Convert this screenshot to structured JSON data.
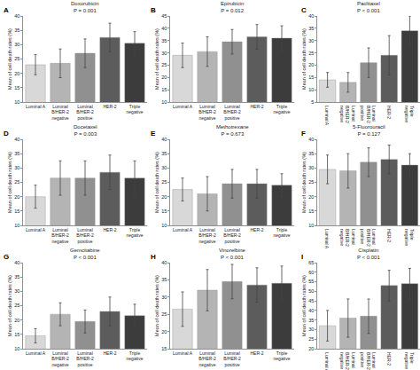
{
  "chart_data": [
    {
      "type": "bar",
      "title": "Doxorubicin",
      "subtitle": "P = 0.001",
      "annotations": [
        "A"
      ],
      "ylabel": "Mean of cell death rates (%)",
      "categories": [
        "Luminal A",
        "Luminal\nB/HER-2\nnegative",
        "Luminal\nB/HER-2\npositive",
        "HER-2",
        "Triple\nnegative"
      ],
      "values": [
        23,
        23.5,
        27,
        32.5,
        30.5
      ],
      "errors": [
        3.5,
        5,
        5,
        5,
        4
      ],
      "colors": [
        "#d8d8d8",
        "#b4b4b4",
        "#909090",
        "#5c5c5c",
        "#3c3c3c"
      ],
      "ylim": [
        10,
        40
      ],
      "yticks": [
        10,
        15,
        20,
        25,
        30,
        35,
        40
      ],
      "grid": false
    },
    {
      "type": "bar",
      "title": "Epirubicin",
      "subtitle": "P = 0.012",
      "annotations": [
        "B"
      ],
      "ylabel": "Mean of cell death rates (%)",
      "categories": [
        "Luminal A",
        "Luminal\nB/HER-2\nnegative",
        "Luminal\nB/HER-2\npositive",
        "HER-2",
        "Triple\nnegative"
      ],
      "values": [
        29,
        30.5,
        34.5,
        36.5,
        36
      ],
      "errors": [
        5,
        6,
        5,
        5,
        5
      ],
      "colors": [
        "#d8d8d8",
        "#b4b4b4",
        "#909090",
        "#5c5c5c",
        "#3c3c3c"
      ],
      "ylim": [
        10,
        45
      ],
      "yticks": [
        10,
        15,
        20,
        25,
        30,
        35,
        40,
        45
      ],
      "grid": false
    },
    {
      "type": "bar",
      "title": "Paclitaxel",
      "subtitle": "P < 0.001",
      "annotations": [
        "C"
      ],
      "ylabel": "Mean of cell death rates (%)",
      "categories": [
        "Luminal A",
        "Luminal\nB/HER-2\nnegative",
        "Luminal\nB/HER-2\npositive",
        "HER-2",
        "Triple\nnegative"
      ],
      "values": [
        14,
        13,
        21,
        24,
        34
      ],
      "errors": [
        3,
        4,
        6,
        8,
        6
      ],
      "colors": [
        "#d8d8d8",
        "#b4b4b4",
        "#909090",
        "#5c5c5c",
        "#3c3c3c"
      ],
      "ylim": [
        5,
        40
      ],
      "yticks": [
        5,
        10,
        15,
        20,
        25,
        30,
        35,
        40
      ],
      "grid": false
    },
    {
      "type": "bar",
      "title": "Docetaxel",
      "subtitle": "P = 0.003",
      "annotations": [
        "D"
      ],
      "ylabel": "Mean of cell death rates (%)",
      "categories": [
        "Luminal A",
        "Luminal\nB/HER-2\nnegative",
        "Luminal\nB/HER-2\npositive",
        "HER-2",
        "Triple\nnegative"
      ],
      "values": [
        20,
        26.5,
        26.5,
        28.5,
        26.5
      ],
      "errors": [
        4,
        6,
        6,
        6,
        6
      ],
      "colors": [
        "#d8d8d8",
        "#b4b4b4",
        "#909090",
        "#5c5c5c",
        "#3c3c3c"
      ],
      "ylim": [
        10,
        40
      ],
      "yticks": [
        10,
        15,
        20,
        25,
        30,
        35,
        40
      ],
      "grid": false
    },
    {
      "type": "bar",
      "title": "Methotrexane",
      "subtitle": "P = 0.673",
      "annotations": [
        "E"
      ],
      "ylabel": "Mean of cell death rates (%)",
      "categories": [
        "Luminal A",
        "Luminal\nB/HER-2\nnegative",
        "Luminal\nB/HER-2\npositive",
        "HER-2",
        "Triple\nnegative"
      ],
      "values": [
        22.5,
        21,
        24.5,
        24.5,
        24
      ],
      "errors": [
        4,
        6,
        5,
        5,
        4
      ],
      "colors": [
        "#d8d8d8",
        "#b4b4b4",
        "#909090",
        "#5c5c5c",
        "#3c3c3c"
      ],
      "ylim": [
        10,
        40
      ],
      "yticks": [
        10,
        15,
        20,
        25,
        30,
        35,
        40
      ],
      "grid": false
    },
    {
      "type": "bar",
      "title": "5-Fluorouracil",
      "subtitle": "P = 0.127",
      "annotations": [
        "F"
      ],
      "ylabel": "Mean of cell death rates (%)",
      "categories": [
        "Luminal A",
        "Luminal\nB/HER-2\nnegative",
        "Luminal\nB/HER-2\npositive",
        "HER-2",
        "Triple\nnegative"
      ],
      "values": [
        29.5,
        29,
        32,
        33,
        31
      ],
      "errors": [
        5,
        6,
        5,
        5,
        4
      ],
      "colors": [
        "#d8d8d8",
        "#b4b4b4",
        "#909090",
        "#5c5c5c",
        "#3c3c3c"
      ],
      "ylim": [
        10,
        40
      ],
      "yticks": [
        10,
        15,
        20,
        25,
        30,
        35,
        40
      ],
      "grid": false
    },
    {
      "type": "bar",
      "title": "Gemcitabine",
      "subtitle": "P < 0.001",
      "annotations": [
        "G"
      ],
      "ylabel": "Mean of cell death rates (%)",
      "categories": [
        "Luminal A",
        "Luminal\nB/HER-2\nnegative",
        "Luminal\nB/HER-2\npositive",
        "HER-2",
        "Triple\nnegative"
      ],
      "values": [
        14.5,
        22,
        19.5,
        23,
        21.5
      ],
      "errors": [
        2.5,
        4,
        4,
        5,
        4
      ],
      "colors": [
        "#d8d8d8",
        "#b4b4b4",
        "#909090",
        "#5c5c5c",
        "#3c3c3c"
      ],
      "ylim": [
        10,
        40
      ],
      "yticks": [
        10,
        15,
        20,
        25,
        30,
        35,
        40
      ],
      "grid": false
    },
    {
      "type": "bar",
      "title": "Vinorelbine",
      "subtitle": "P < 0.001",
      "annotations": [
        "H"
      ],
      "ylabel": "Mean of cell death rates (%)",
      "categories": [
        "Luminal A",
        "Luminal\nB/HER-2\nnegative",
        "Luminal\nB/HER-2\npositive",
        "HER-2",
        "Triple\nnegative"
      ],
      "values": [
        26.5,
        32,
        34.5,
        33.5,
        34
      ],
      "errors": [
        5,
        6,
        5,
        5,
        5
      ],
      "colors": [
        "#d8d8d8",
        "#b4b4b4",
        "#909090",
        "#5c5c5c",
        "#3c3c3c"
      ],
      "ylim": [
        15,
        40
      ],
      "yticks": [
        15,
        20,
        25,
        30,
        35,
        40
      ],
      "grid": false
    },
    {
      "type": "bar",
      "title": "Cisplatin",
      "subtitle": "P < 0.001",
      "annotations": [
        "I"
      ],
      "ylabel": "Mean of cell death rates (%)",
      "categories": [
        "Luminal A",
        "Luminal\nB/HER-2\nnegative",
        "Luminal\nB/HER-2\npositive",
        "HER-2",
        "Triple\nnegative"
      ],
      "values": [
        32,
        36,
        37,
        53,
        54
      ],
      "errors": [
        8,
        10,
        9,
        8,
        8
      ],
      "colors": [
        "#d8d8d8",
        "#b4b4b4",
        "#909090",
        "#5c5c5c",
        "#3c3c3c"
      ],
      "ylim": [
        20,
        65
      ],
      "yticks": [
        20,
        25,
        30,
        35,
        40,
        45,
        50,
        55,
        60,
        65
      ],
      "grid": false
    }
  ]
}
